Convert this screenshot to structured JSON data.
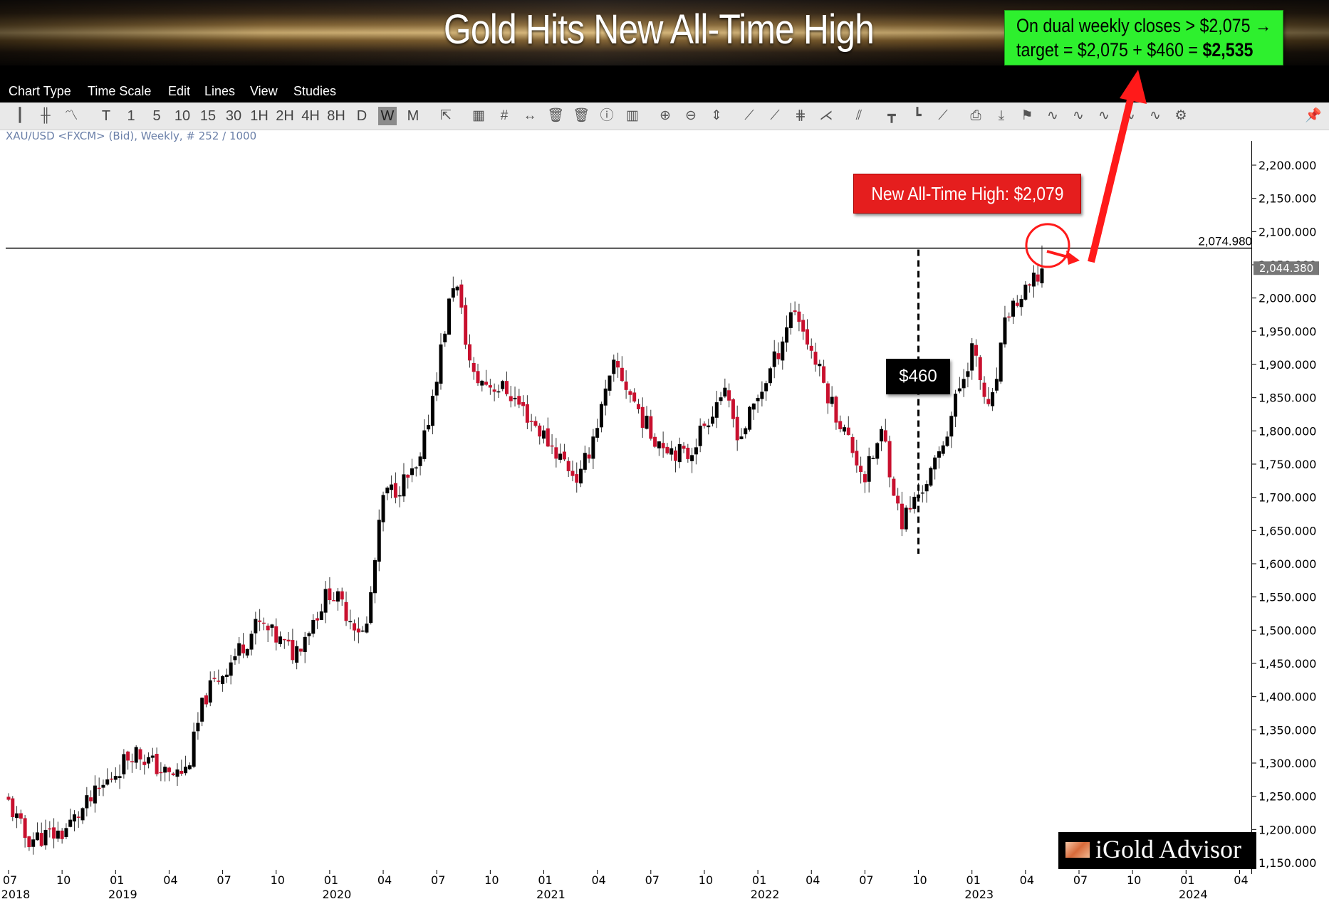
{
  "banner": {
    "title": "Gold Hits New All-Time High"
  },
  "callout_target": {
    "line1": "On dual weekly closes > $2,075 →",
    "line2_prefix": "target = $2,075 + $460 = ",
    "line2_bold": "$2,535"
  },
  "callout_ath": {
    "label": "New All-Time High: $2,079"
  },
  "callout_range": {
    "label": "$460"
  },
  "menu": [
    "Chart Type",
    "Time Scale",
    "Edit",
    "Lines",
    "View",
    "Studies"
  ],
  "toolbar": {
    "timeframes": [
      "T",
      "1",
      "5",
      "10",
      "15",
      "30",
      "1H",
      "2H",
      "4H",
      "8H",
      "D",
      "W",
      "M"
    ],
    "selected_timeframe": "W"
  },
  "symbol_info": "XAU/USD <FXCM> (Bid), Weekly, # 252 / 1000",
  "logo": {
    "text": "iGold Advisor"
  },
  "chart_data": {
    "type": "candlestick",
    "instrument": "XAU/USD",
    "interval": "Weekly",
    "x_range": [
      "2018-07",
      "2024-04"
    ],
    "ylim": [
      1150,
      2200
    ],
    "y_ticks": [
      1150,
      1200,
      1250,
      1300,
      1350,
      1400,
      1450,
      1500,
      1550,
      1600,
      1650,
      1700,
      1750,
      1800,
      1850,
      1900,
      1950,
      2000,
      2050,
      2100,
      2150,
      2200
    ],
    "y_tick_format": "0,000.000",
    "x_ticks": [
      {
        "month": "07",
        "year": "2018"
      },
      {
        "month": "10",
        "year": ""
      },
      {
        "month": "01",
        "year": "2019"
      },
      {
        "month": "04",
        "year": ""
      },
      {
        "month": "07",
        "year": ""
      },
      {
        "month": "10",
        "year": ""
      },
      {
        "month": "01",
        "year": "2020"
      },
      {
        "month": "04",
        "year": ""
      },
      {
        "month": "07",
        "year": ""
      },
      {
        "month": "10",
        "year": ""
      },
      {
        "month": "01",
        "year": "2021"
      },
      {
        "month": "04",
        "year": ""
      },
      {
        "month": "07",
        "year": ""
      },
      {
        "month": "10",
        "year": ""
      },
      {
        "month": "01",
        "year": "2022"
      },
      {
        "month": "04",
        "year": ""
      },
      {
        "month": "07",
        "year": ""
      },
      {
        "month": "10",
        "year": ""
      },
      {
        "month": "01",
        "year": "2023"
      },
      {
        "month": "04",
        "year": ""
      },
      {
        "month": "07",
        "year": ""
      },
      {
        "month": "10",
        "year": ""
      },
      {
        "month": "01",
        "year": "2024"
      },
      {
        "month": "04",
        "year": ""
      }
    ],
    "approx_close_path": [
      {
        "date": "2018-07",
        "close": 1240
      },
      {
        "date": "2018-08",
        "close": 1185
      },
      {
        "date": "2018-10",
        "close": 1195
      },
      {
        "date": "2018-12",
        "close": 1255
      },
      {
        "date": "2019-02",
        "close": 1320
      },
      {
        "date": "2019-04",
        "close": 1280
      },
      {
        "date": "2019-05",
        "close": 1290
      },
      {
        "date": "2019-06",
        "close": 1400
      },
      {
        "date": "2019-09",
        "close": 1510
      },
      {
        "date": "2019-11",
        "close": 1465
      },
      {
        "date": "2020-01",
        "close": 1560
      },
      {
        "date": "2020-03",
        "close": 1490
      },
      {
        "date": "2020-04",
        "close": 1700
      },
      {
        "date": "2020-06",
        "close": 1740
      },
      {
        "date": "2020-08",
        "close": 2035
      },
      {
        "date": "2020-09",
        "close": 1880
      },
      {
        "date": "2020-11",
        "close": 1860
      },
      {
        "date": "2021-03",
        "close": 1725
      },
      {
        "date": "2021-05",
        "close": 1900
      },
      {
        "date": "2021-07",
        "close": 1795
      },
      {
        "date": "2021-09",
        "close": 1760
      },
      {
        "date": "2021-11",
        "close": 1860
      },
      {
        "date": "2021-12",
        "close": 1790
      },
      {
        "date": "2022-02",
        "close": 1910
      },
      {
        "date": "2022-03",
        "close": 1990
      },
      {
        "date": "2022-05",
        "close": 1850
      },
      {
        "date": "2022-07",
        "close": 1730
      },
      {
        "date": "2022-08",
        "close": 1800
      },
      {
        "date": "2022-09",
        "close": 1660
      },
      {
        "date": "2022-11",
        "close": 1750
      },
      {
        "date": "2023-01",
        "close": 1925
      },
      {
        "date": "2023-02",
        "close": 1820
      },
      {
        "date": "2023-03",
        "close": 1980
      },
      {
        "date": "2023-04",
        "close": 2005
      },
      {
        "date": "2023-05",
        "close": 2044.38
      }
    ],
    "horizontal_line": {
      "value": 2074.98,
      "label": "2,074.980"
    },
    "last_price": {
      "value": 2044.38,
      "label": "2,044.380"
    },
    "measure_line": {
      "date": "2022-10",
      "low": 1615,
      "high": 2075,
      "range": 460
    },
    "annotations": [
      "New All-Time High: $2,079",
      "$460",
      "On dual weekly closes > $2,075 → target = $2,075 + $460 = $2,535"
    ],
    "colors": {
      "up": "#000000",
      "down": "#c8102e",
      "arrow": "#ff1a1a",
      "callout_green": "#2ef02e",
      "callout_red": "#e51e1e"
    }
  }
}
